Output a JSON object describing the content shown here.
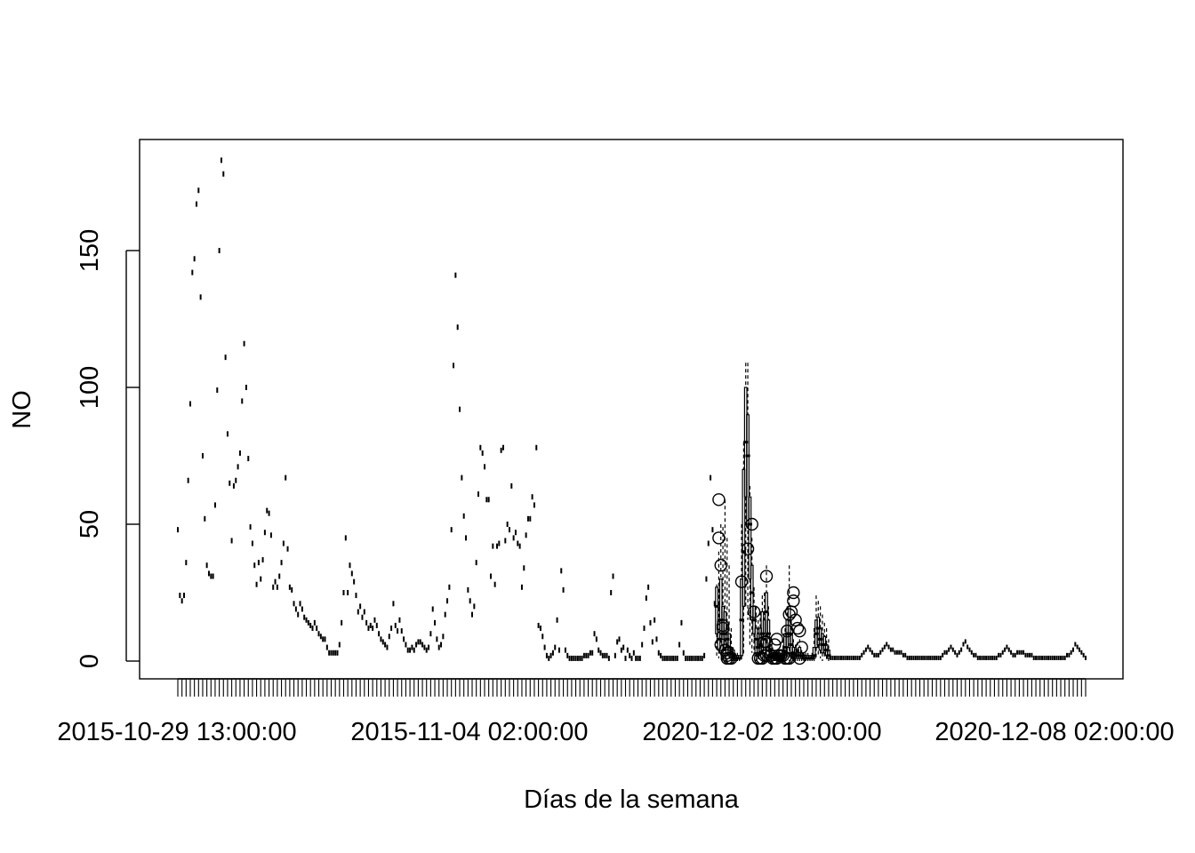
{
  "chart_data": {
    "type": "box",
    "title": "",
    "xlabel": "Días de la semana",
    "ylabel": "NO",
    "ylim": [
      0,
      190
    ],
    "yticks": [
      0,
      50,
      100,
      150
    ],
    "grid": false,
    "x_tick_labels": [
      "2015-10-29 13:00:00",
      "2015-11-04 02:00:00",
      "2020-12-02 13:00:00",
      "2020-12-08 02:00:00"
    ],
    "note_x": "categorical axis of hourly timestamps, one box per category",
    "series_2015_values": [
      48,
      24,
      22,
      24,
      36,
      66,
      94,
      142,
      147,
      167,
      172,
      133,
      75,
      52,
      35,
      32,
      31,
      31,
      57,
      99,
      150,
      183,
      178,
      111,
      83,
      65,
      44,
      64,
      66,
      71,
      76,
      95,
      116,
      100,
      74,
      49,
      43,
      35,
      28,
      36,
      30,
      37,
      47,
      55,
      54,
      46,
      27,
      29,
      27,
      31,
      36,
      43,
      67,
      41,
      27,
      26,
      21,
      19,
      17,
      21,
      19,
      16,
      15,
      14,
      13,
      12,
      14,
      12,
      10,
      9,
      8,
      8,
      5,
      3,
      3,
      3,
      3,
      3,
      6,
      14,
      25,
      45,
      25,
      35,
      32,
      29,
      24,
      18,
      20,
      16,
      18,
      14,
      12,
      13,
      12,
      15,
      13,
      10,
      8,
      7,
      6,
      5,
      9,
      12,
      21,
      13,
      11,
      15,
      11,
      8,
      6,
      4,
      4,
      5,
      4,
      6,
      7,
      7,
      6,
      5,
      4,
      5,
      10,
      19,
      14,
      8,
      5,
      6,
      9,
      17,
      22,
      27,
      48,
      108,
      141,
      122,
      92,
      67,
      53,
      45,
      26,
      22,
      17,
      20,
      36,
      61,
      78,
      76,
      71,
      59,
      59,
      31,
      42,
      28,
      42,
      43,
      77,
      78,
      44,
      50,
      48,
      64,
      45,
      47,
      43,
      42,
      27,
      34,
      46,
      52,
      52,
      60,
      57,
      78,
      13,
      12,
      9,
      5,
      2,
      1,
      2,
      3,
      5,
      15,
      4,
      33,
      26,
      4,
      2,
      1,
      1,
      1,
      1,
      1,
      1,
      1,
      2,
      2,
      2,
      3,
      3,
      10,
      8,
      4,
      3,
      2,
      2,
      2,
      1,
      25,
      31,
      2,
      7,
      8,
      4,
      5,
      1,
      4,
      2,
      1,
      3,
      1,
      1,
      1,
      6,
      12,
      23,
      27,
      14,
      7,
      15,
      8,
      3,
      2,
      1,
      1,
      1,
      1,
      1,
      1,
      1,
      1,
      6,
      14,
      3,
      1,
      1,
      1,
      1,
      1,
      1,
      1,
      1,
      1,
      2,
      30,
      43,
      67,
      48,
      21
    ],
    "series_2020_boxes": [
      [
        2,
        10,
        20,
        27,
        28
      ],
      [
        1,
        4,
        8,
        15,
        40
      ],
      [
        2,
        8,
        15,
        30,
        50
      ],
      [
        0,
        6,
        10,
        20,
        49
      ],
      [
        1,
        5,
        10,
        18,
        59
      ],
      [
        0,
        3,
        8,
        12,
        45
      ],
      [
        1,
        2,
        5,
        10,
        35
      ],
      [
        0,
        1,
        3,
        5,
        12
      ],
      [
        0,
        1,
        2,
        4,
        5
      ],
      [
        0,
        1,
        1,
        2,
        3
      ],
      [
        0,
        1,
        1,
        2,
        3
      ],
      [
        0,
        1,
        1,
        2,
        2
      ],
      [
        0,
        2,
        15,
        30,
        50
      ],
      [
        2,
        20,
        40,
        70,
        80
      ],
      [
        20,
        60,
        80,
        100,
        109
      ],
      [
        15,
        50,
        75,
        90,
        109
      ],
      [
        5,
        30,
        50,
        60,
        64
      ],
      [
        3,
        15,
        25,
        35,
        45
      ],
      [
        2,
        10,
        15,
        20,
        27
      ],
      [
        0,
        3,
        8,
        12,
        20
      ],
      [
        0,
        2,
        5,
        10,
        15
      ],
      [
        1,
        3,
        6,
        12,
        18
      ],
      [
        0,
        4,
        10,
        18,
        24
      ],
      [
        0,
        3,
        8,
        15,
        25
      ],
      [
        2,
        10,
        18,
        25,
        35
      ],
      [
        1,
        5,
        10,
        15,
        20
      ],
      [
        0,
        2,
        4,
        6,
        8
      ],
      [
        0,
        1,
        2,
        4,
        5
      ],
      [
        0,
        1,
        1,
        2,
        3
      ],
      [
        0,
        1,
        1,
        2,
        3
      ],
      [
        0,
        1,
        2,
        3,
        4
      ],
      [
        0,
        1,
        1,
        2,
        3
      ],
      [
        0,
        1,
        2,
        4,
        8
      ],
      [
        0,
        2,
        5,
        10,
        12
      ],
      [
        1,
        5,
        10,
        15,
        20
      ],
      [
        0,
        5,
        10,
        20,
        35
      ],
      [
        0,
        2,
        6,
        10,
        15
      ],
      [
        0,
        1,
        3,
        5,
        8
      ],
      [
        0,
        1,
        2,
        4,
        6
      ],
      [
        0,
        1,
        2,
        4,
        7
      ],
      [
        0,
        1,
        2,
        5,
        8
      ],
      [
        0,
        1,
        2,
        3,
        4
      ],
      [
        0,
        1,
        1,
        2,
        3
      ],
      [
        0,
        1,
        1,
        2,
        3
      ],
      [
        0,
        1,
        1,
        2,
        3
      ],
      [
        0,
        1,
        1,
        2,
        2
      ],
      [
        0,
        1,
        1,
        2,
        3
      ],
      [
        0,
        1,
        2,
        5,
        12
      ],
      [
        1,
        5,
        10,
        15,
        24
      ],
      [
        2,
        6,
        12,
        16,
        22
      ],
      [
        1,
        4,
        8,
        12,
        20
      ],
      [
        0,
        3,
        6,
        10,
        17
      ],
      [
        1,
        3,
        6,
        9,
        14
      ],
      [
        0,
        2,
        4,
        6,
        12
      ],
      [
        0,
        1,
        2,
        4,
        8
      ]
    ],
    "series_2020_outliers": [
      [
        1,
        59
      ],
      [
        1,
        45
      ],
      [
        2,
        35
      ],
      [
        3,
        13
      ],
      [
        3,
        12
      ],
      [
        2,
        6
      ],
      [
        4,
        4
      ],
      [
        5,
        3
      ],
      [
        5,
        2
      ],
      [
        5,
        1
      ],
      [
        6,
        1
      ],
      [
        7,
        1
      ],
      [
        12,
        29
      ],
      [
        15,
        41
      ],
      [
        17,
        50
      ],
      [
        18,
        18
      ],
      [
        20,
        1
      ],
      [
        21,
        1
      ],
      [
        22,
        1
      ],
      [
        23,
        2
      ],
      [
        23,
        7
      ],
      [
        24,
        31
      ],
      [
        24,
        7
      ],
      [
        24,
        2
      ],
      [
        26,
        2
      ],
      [
        27,
        1
      ],
      [
        28,
        6
      ],
      [
        28,
        1
      ],
      [
        29,
        8
      ],
      [
        29,
        1
      ],
      [
        30,
        2
      ],
      [
        31,
        2
      ],
      [
        32,
        2
      ],
      [
        33,
        1
      ],
      [
        34,
        11
      ],
      [
        34,
        1
      ],
      [
        35,
        17
      ],
      [
        35,
        1
      ],
      [
        36,
        18
      ],
      [
        37,
        22
      ],
      [
        37,
        25
      ],
      [
        38,
        15
      ],
      [
        39,
        12
      ],
      [
        40,
        11
      ],
      [
        40,
        1
      ],
      [
        41,
        5
      ]
    ],
    "series_late_2020_values": [
      1,
      1,
      1,
      1,
      1,
      1,
      1,
      1,
      1,
      1,
      1,
      1,
      1,
      1,
      1,
      2,
      3,
      4,
      5,
      4,
      3,
      2,
      2,
      2,
      3,
      4,
      5,
      6,
      5,
      4,
      4,
      3,
      3,
      3,
      3,
      2,
      2,
      1,
      1,
      1,
      1,
      1,
      1,
      1,
      1,
      1,
      1,
      1,
      1,
      1,
      1,
      1,
      1,
      1,
      2,
      3,
      3,
      4,
      5,
      4,
      3,
      2,
      3,
      4,
      6,
      7,
      5,
      4,
      3,
      2,
      2,
      1,
      1,
      1,
      1,
      1,
      1,
      1,
      1,
      1,
      1,
      2,
      2,
      3,
      4,
      5,
      4,
      3,
      2,
      2,
      3,
      3,
      3,
      3,
      2,
      2,
      2,
      2,
      1,
      1,
      1,
      1,
      1,
      1,
      1,
      1,
      1,
      1,
      1,
      1,
      1,
      1,
      1,
      1,
      2,
      2,
      3,
      4,
      6,
      5,
      4,
      3,
      2,
      1
    ]
  }
}
